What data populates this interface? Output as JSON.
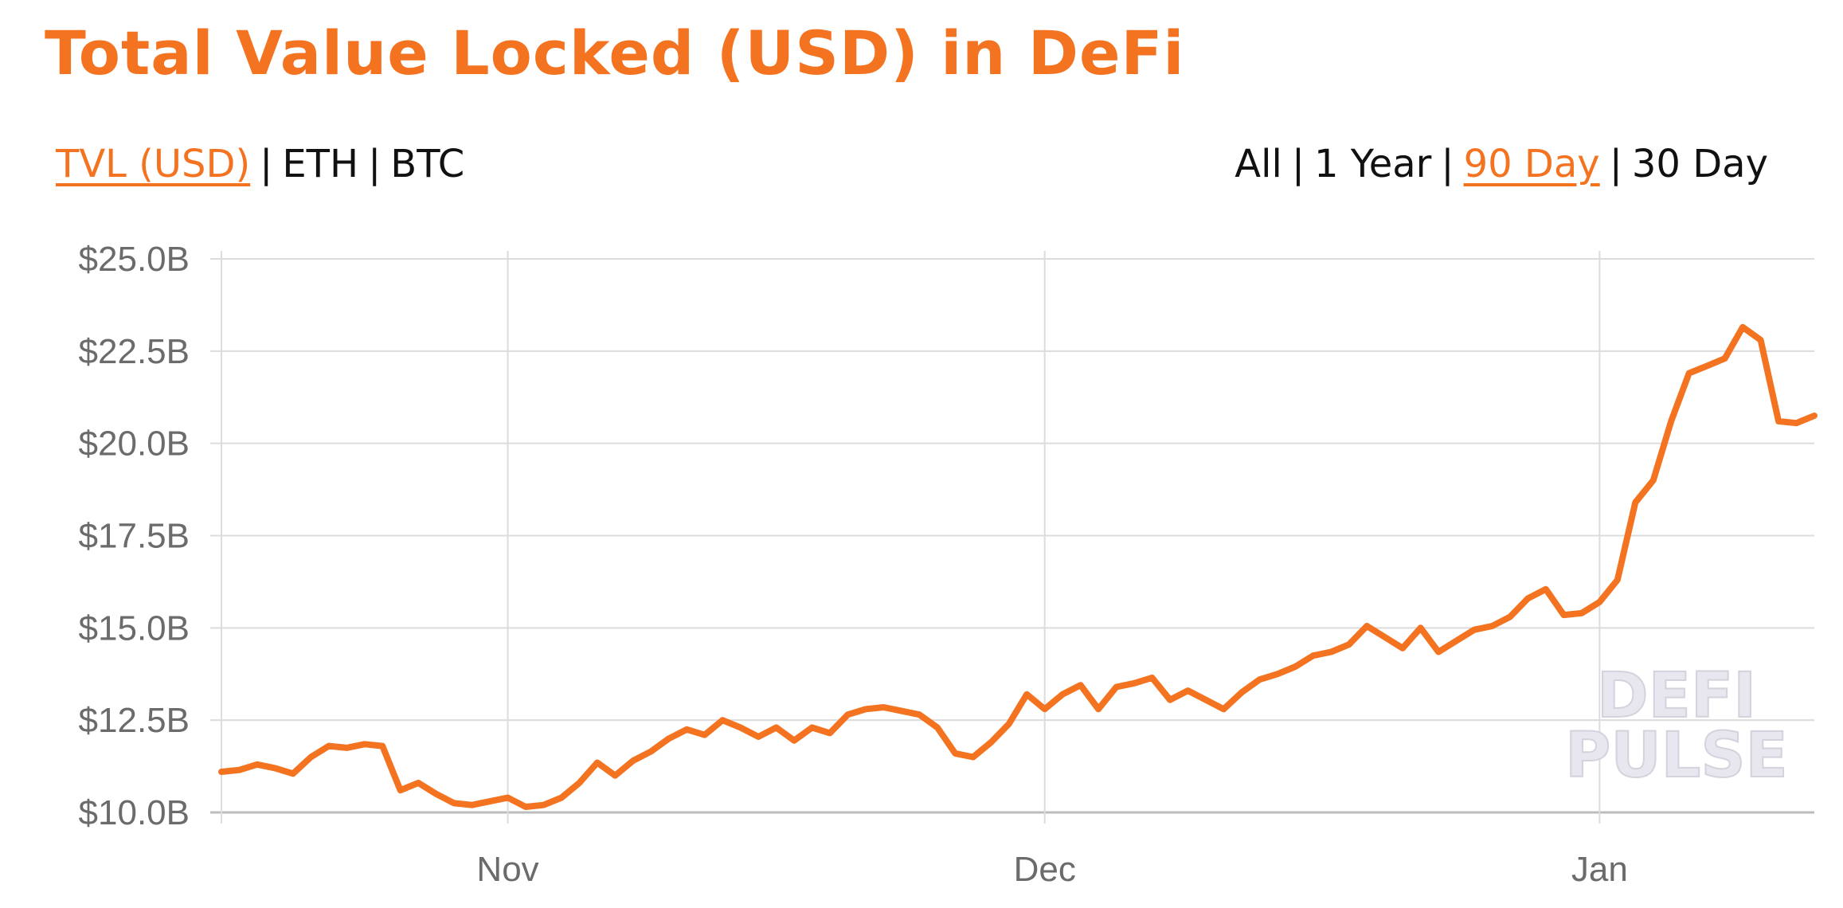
{
  "title": "Total Value Locked (USD) in DeFi",
  "series_tabs": [
    {
      "label": "TVL (USD)",
      "active": true
    },
    {
      "label": "ETH",
      "active": false
    },
    {
      "label": "BTC",
      "active": false
    }
  ],
  "range_tabs": [
    {
      "label": "All",
      "active": false
    },
    {
      "label": "1 Year",
      "active": false
    },
    {
      "label": "90 Day",
      "active": true
    },
    {
      "label": "30 Day",
      "active": false
    }
  ],
  "separator": "|",
  "watermark": {
    "line1": "DEFI",
    "line2": "PULSE"
  },
  "colors": {
    "accent": "#f47321",
    "grid": "#dcdcdc",
    "axis": "#bdbdbd",
    "tick_text": "#6b6b6b"
  },
  "chart_data": {
    "type": "line",
    "title": "Total Value Locked (USD) in DeFi",
    "xlabel": "",
    "ylabel": "",
    "ylim": [
      10.0,
      25.0
    ],
    "y_ticks": [
      10.0,
      12.5,
      15.0,
      17.5,
      20.0,
      22.5,
      25.0
    ],
    "y_tick_labels": [
      "$10.0B",
      "$12.5B",
      "$15.0B",
      "$17.5B",
      "$20.0B",
      "$22.5B",
      "$25.0B"
    ],
    "x_ticks": [
      {
        "label": "Nov",
        "date": "2020-11-01"
      },
      {
        "label": "Dec",
        "date": "2020-12-01"
      },
      {
        "label": "Jan",
        "date": "2021-01-01"
      }
    ],
    "grid": true,
    "units": "USD billions",
    "series": [
      {
        "dates": [
          "2020-10-16",
          "2020-10-17",
          "2020-10-18",
          "2020-10-19",
          "2020-10-20",
          "2020-10-21",
          "2020-10-22",
          "2020-10-23",
          "2020-10-24",
          "2020-10-25",
          "2020-10-26",
          "2020-10-27",
          "2020-10-28",
          "2020-10-29",
          "2020-10-30",
          "2020-10-31",
          "2020-11-01",
          "2020-11-02",
          "2020-11-03",
          "2020-11-04",
          "2020-11-05",
          "2020-11-06",
          "2020-11-07",
          "2020-11-08",
          "2020-11-09",
          "2020-11-10",
          "2020-11-11",
          "2020-11-12",
          "2020-11-13",
          "2020-11-14",
          "2020-11-15",
          "2020-11-16",
          "2020-11-17",
          "2020-11-18",
          "2020-11-19",
          "2020-11-20",
          "2020-11-21",
          "2020-11-22",
          "2020-11-23",
          "2020-11-24",
          "2020-11-25",
          "2020-11-26",
          "2020-11-27",
          "2020-11-28",
          "2020-11-29",
          "2020-11-30",
          "2020-12-01",
          "2020-12-02",
          "2020-12-03",
          "2020-12-04",
          "2020-12-05",
          "2020-12-06",
          "2020-12-07",
          "2020-12-08",
          "2020-12-09",
          "2020-12-10",
          "2020-12-11",
          "2020-12-12",
          "2020-12-13",
          "2020-12-14",
          "2020-12-15",
          "2020-12-16",
          "2020-12-17",
          "2020-12-18",
          "2020-12-19",
          "2020-12-20",
          "2020-12-21",
          "2020-12-22",
          "2020-12-23",
          "2020-12-24",
          "2020-12-25",
          "2020-12-26",
          "2020-12-27",
          "2020-12-28",
          "2020-12-29",
          "2020-12-30",
          "2020-12-31",
          "2021-01-01",
          "2021-01-02",
          "2021-01-03",
          "2021-01-04",
          "2021-01-05",
          "2021-01-06",
          "2021-01-07",
          "2021-01-08",
          "2021-01-09",
          "2021-01-10",
          "2021-01-11",
          "2021-01-12",
          "2021-01-13"
        ],
        "values": [
          11.1,
          11.15,
          11.3,
          11.2,
          11.05,
          11.5,
          11.8,
          11.75,
          11.85,
          11.8,
          10.6,
          10.8,
          10.5,
          10.25,
          10.2,
          10.3,
          10.4,
          10.15,
          10.2,
          10.4,
          10.8,
          11.35,
          11.0,
          11.4,
          11.65,
          12.0,
          12.25,
          12.1,
          12.5,
          12.3,
          12.05,
          12.3,
          11.95,
          12.3,
          12.15,
          12.65,
          12.8,
          12.85,
          12.75,
          12.65,
          12.3,
          11.6,
          11.5,
          11.9,
          12.4,
          13.2,
          12.8,
          13.2,
          13.45,
          12.8,
          13.4,
          13.5,
          13.65,
          13.05,
          13.3,
          13.05,
          12.8,
          13.25,
          13.6,
          13.75,
          13.95,
          14.25,
          14.35,
          14.55,
          15.05,
          14.75,
          14.45,
          15.0,
          14.35,
          14.65,
          14.95,
          15.05,
          15.3,
          15.8,
          16.05,
          15.35,
          15.4,
          15.7,
          16.3,
          18.4,
          19.0,
          20.6,
          21.9,
          22.1,
          22.3,
          23.15,
          22.8,
          20.6,
          20.55,
          20.75
        ]
      }
    ]
  }
}
